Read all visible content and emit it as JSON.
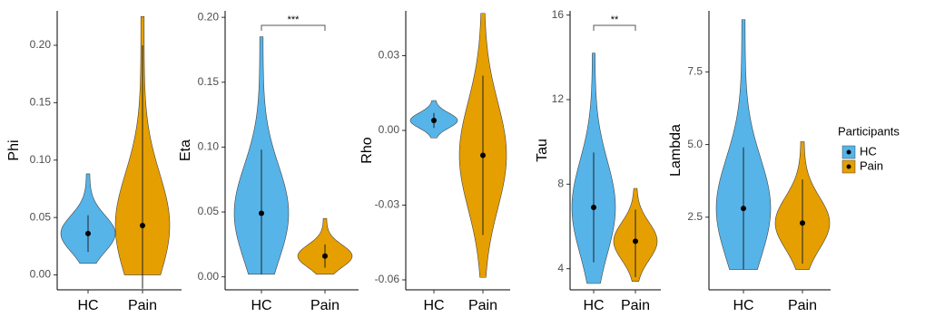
{
  "chart_data": [
    {
      "type": "violin",
      "y_label": "Phi",
      "categories": [
        "HC",
        "Pain"
      ],
      "values": [
        0.036,
        0.043
      ],
      "min": [
        0.01,
        0.0
      ],
      "max": [
        0.088,
        0.225
      ],
      "ci_low": [
        0.02,
        -0.012
      ],
      "ci_high": [
        0.052,
        0.2
      ],
      "ylim": [
        -0.013,
        0.23
      ],
      "yticks": [
        {
          "value": 0,
          "label": "0.00"
        },
        0.05,
        {
          "value": 0.1,
          "label": "0.10"
        },
        0.15,
        {
          "value": 0.2,
          "label": "0.20"
        }
      ]
    },
    {
      "type": "violin",
      "y_label": "Eta",
      "categories": [
        "HC",
        "Pain"
      ],
      "values": [
        0.049,
        0.016
      ],
      "min": [
        0.002,
        0.002
      ],
      "max": [
        0.185,
        0.045
      ],
      "ci_low": [
        0.002,
        0.007
      ],
      "ci_high": [
        0.098,
        0.025
      ],
      "ylim": [
        -0.01,
        0.205
      ],
      "yticks": [
        {
          "value": 0,
          "label": "0.00"
        },
        0.05,
        {
          "value": 0.1,
          "label": "0.10"
        },
        0.15,
        {
          "value": 0.2,
          "label": "0.20"
        }
      ],
      "annotation": "***"
    },
    {
      "type": "violin",
      "y_label": "Rho",
      "categories": [
        "HC",
        "Pain"
      ],
      "values": [
        0.004,
        -0.01
      ],
      "min": [
        -0.003,
        -0.059
      ],
      "max": [
        0.012,
        0.047
      ],
      "ci_low": [
        0.001,
        -0.042
      ],
      "ci_high": [
        0.007,
        0.022
      ],
      "ylim": [
        -0.064,
        0.048
      ],
      "yticks": [
        -0.06,
        -0.03,
        {
          "value": 0,
          "label": "0.00"
        },
        0.03
      ]
    },
    {
      "type": "violin",
      "y_label": "Tau",
      "categories": [
        "HC",
        "Pain"
      ],
      "values": [
        6.9,
        5.3
      ],
      "min": [
        3.3,
        3.4
      ],
      "max": [
        14.2,
        7.8
      ],
      "ci_low": [
        4.3,
        3.6
      ],
      "ci_high": [
        9.5,
        6.8
      ],
      "ylim": [
        3,
        16.2
      ],
      "yticks": [
        4,
        8,
        12,
        16
      ],
      "annotation": "**"
    },
    {
      "type": "violin",
      "y_label": "Lambda",
      "categories": [
        "HC",
        "Pain"
      ],
      "values": [
        2.8,
        2.3
      ],
      "min": [
        0.7,
        0.7
      ],
      "max": [
        9.3,
        5.1
      ],
      "ci_low": [
        0.7,
        0.9
      ],
      "ci_high": [
        4.9,
        3.8
      ],
      "ylim": [
        0,
        9.6
      ],
      "yticks": [
        2.5,
        {
          "value": 5,
          "label": "5.0"
        },
        7.5
      ]
    }
  ],
  "legend": {
    "title": "Participants",
    "entries": [
      "HC",
      "Pain"
    ],
    "colors": [
      "#56B4E9",
      "#E69F00"
    ]
  }
}
